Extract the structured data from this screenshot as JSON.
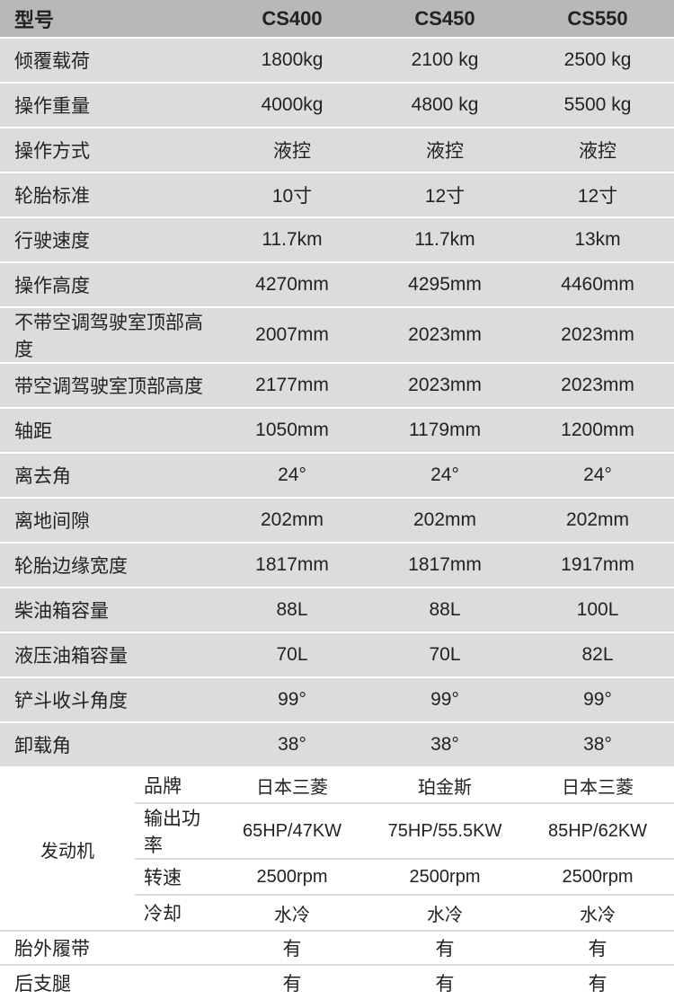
{
  "colors": {
    "header_bg": "#b8b8b8",
    "stripe_bg": "#dcdcdc",
    "border": "#ffffff",
    "thin_border": "#dcdcdc",
    "text": "#222222"
  },
  "header": {
    "label": "型号",
    "cols": [
      "CS400",
      "CS450",
      "CS550"
    ]
  },
  "rows": [
    {
      "label": "倾覆载荷",
      "vals": [
        "1800kg",
        "2100 kg",
        "2500 kg"
      ]
    },
    {
      "label": "操作重量",
      "vals": [
        "4000kg",
        "4800 kg",
        "5500 kg"
      ]
    },
    {
      "label": "操作方式",
      "vals": [
        "液控",
        "液控",
        "液控"
      ]
    },
    {
      "label": "轮胎标准",
      "vals": [
        "10寸",
        "12寸",
        "12寸"
      ]
    },
    {
      "label": "行驶速度",
      "vals": [
        "11.7km",
        "11.7km",
        "13km"
      ]
    },
    {
      "label": "操作高度",
      "vals": [
        "4270mm",
        "4295mm",
        "4460mm"
      ]
    },
    {
      "label": "不带空调驾驶室顶部高度",
      "vals": [
        "2007mm",
        "2023mm",
        "2023mm"
      ]
    },
    {
      "label": "带空调驾驶室顶部高度",
      "vals": [
        "2177mm",
        "2023mm",
        "2023mm"
      ]
    },
    {
      "label": "轴距",
      "vals": [
        "1050mm",
        "1179mm",
        "1200mm"
      ]
    },
    {
      "label": "离去角",
      "vals": [
        "24°",
        "24°",
        "24°"
      ]
    },
    {
      "label": "离地间隙",
      "vals": [
        "202mm",
        "202mm",
        "202mm"
      ]
    },
    {
      "label": "轮胎边缘宽度",
      "vals": [
        "1817mm",
        "1817mm",
        "1917mm"
      ]
    },
    {
      "label": "柴油箱容量",
      "vals": [
        "88L",
        "88L",
        "100L"
      ]
    },
    {
      "label": "液压油箱容量",
      "vals": [
        "70L",
        "70L",
        "82L"
      ]
    },
    {
      "label": "铲斗收斗角度",
      "vals": [
        "99°",
        "99°",
        "99°"
      ]
    },
    {
      "label": "卸载角",
      "vals": [
        "38°",
        "38°",
        "38°"
      ]
    }
  ],
  "engine": {
    "group_label": "发动机",
    "subrows": [
      {
        "label": "品牌",
        "vals": [
          "日本三菱",
          "珀金斯",
          "日本三菱"
        ]
      },
      {
        "label": "输出功率",
        "vals": [
          "65HP/47KW",
          "75HP/55.5KW",
          "85HP/62KW"
        ]
      },
      {
        "label": "转速",
        "vals": [
          "2500rpm",
          "2500rpm",
          "2500rpm"
        ]
      },
      {
        "label": "冷却",
        "vals": [
          "水冷",
          "水冷",
          "水冷"
        ]
      }
    ]
  },
  "bottom_rows": [
    {
      "label": "胎外履带",
      "vals": [
        "有",
        "有",
        "有"
      ]
    },
    {
      "label": "后支腿",
      "vals": [
        "有",
        "有",
        "有"
      ]
    }
  ]
}
